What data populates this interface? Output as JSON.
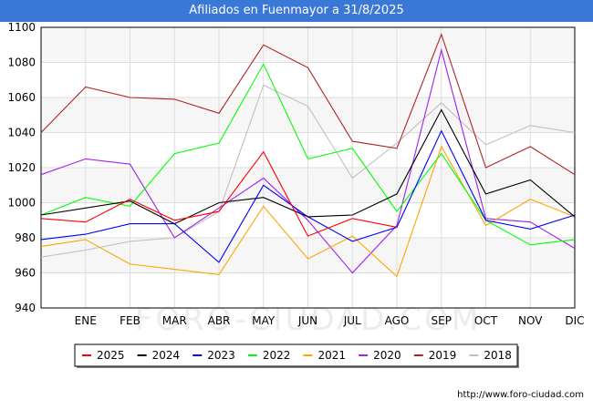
{
  "chart_data": {
    "type": "line",
    "title": "Afiliados en Fuenmayor a 31/8/2025",
    "categories": [
      "",
      "ENE",
      "FEB",
      "MAR",
      "ABR",
      "MAY",
      "JUN",
      "JUL",
      "AGO",
      "SEP",
      "OCT",
      "NOV",
      "DIC"
    ],
    "ylim": [
      940,
      1100
    ],
    "yticks": [
      940,
      960,
      980,
      1000,
      1020,
      1040,
      1060,
      1080,
      1100
    ],
    "grid": true,
    "legend_position": "bottom",
    "series": [
      {
        "name": "2025",
        "color": "#ff0000",
        "values": [
          991,
          989,
          1002,
          990,
          995,
          1029,
          981,
          991,
          986,
          null,
          null,
          null,
          null
        ]
      },
      {
        "name": "2024",
        "color": "#000000",
        "values": [
          993,
          997,
          1001,
          988,
          1000,
          1003,
          992,
          993,
          1005,
          1053,
          1005,
          1013,
          992
        ]
      },
      {
        "name": "2023",
        "color": "#0000ff",
        "values": [
          979,
          982,
          988,
          988,
          966,
          1010,
          992,
          978,
          986,
          1041,
          990,
          985,
          993
        ]
      },
      {
        "name": "2022",
        "color": "#00ff00",
        "values": [
          993,
          1003,
          998,
          1028,
          1034,
          1079,
          1025,
          1031,
          995,
          1028,
          990,
          976,
          979
        ]
      },
      {
        "name": "2021",
        "color": "#ffa500",
        "values": [
          975,
          979,
          965,
          962,
          959,
          998,
          968,
          981,
          958,
          1032,
          987,
          1002,
          992
        ]
      },
      {
        "name": "2020",
        "color": "#a020f0",
        "values": [
          1016,
          1025,
          1022,
          980,
          997,
          1014,
          990,
          960,
          987,
          1087,
          991,
          989,
          974
        ]
      },
      {
        "name": "2019",
        "color": "#b22222",
        "values": [
          1040,
          1066,
          1060,
          1059,
          1051,
          1090,
          1077,
          1035,
          1031,
          1096,
          1020,
          1032,
          1016
        ]
      },
      {
        "name": "2018",
        "color": "#c0c0c0",
        "values": [
          969,
          973,
          978,
          980,
          995,
          1067,
          1055,
          1014,
          1034,
          1057,
          1033,
          1044,
          1040
        ]
      }
    ]
  },
  "watermark": "FORO-CIUDAD.COM",
  "source": "http://www.foro-ciudad.com"
}
